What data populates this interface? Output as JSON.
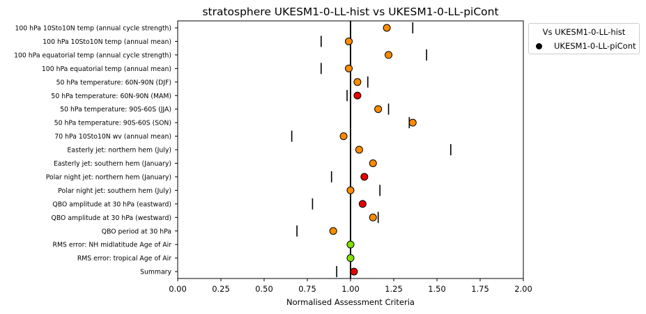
{
  "chart_data": {
    "type": "scatter",
    "title": "stratosphere UKESM1-0-LL-hist vs UKESM1-0-LL-piCont",
    "xlabel": "Normalised Assessment Criteria",
    "ylabel": "",
    "xlim": [
      0,
      2
    ],
    "xticks": [
      "0.00",
      "0.25",
      "0.50",
      "0.75",
      "1.00",
      "1.25",
      "1.50",
      "1.75",
      "2.00"
    ],
    "reference_line_x": 1.0,
    "grid": false,
    "legend": {
      "title": "Vs UKESM1-0-LL-hist",
      "placement": "outside-top-right",
      "entries": [
        {
          "label": "UKESM1-0-LL-piCont",
          "color": "#000000"
        }
      ]
    },
    "categories": [
      "100 hPa 10Sto10N temp (annual cycle strength)",
      "100 hPa 10Sto10N temp (annual mean)",
      "100 hPa equatorial temp (annual cycle strength)",
      "100 hPa equatorial temp (annual mean)",
      "50 hPa temperature: 60N-90N (DJF)",
      "50 hPa temperature: 60N-90N (MAM)",
      "50 hPa temperature: 90S-60S (JJA)",
      "50 hPa temperature: 90S-60S (SON)",
      "70 hPa 10Sto10N wv (annual mean)",
      "Easterly jet: northern hem (July)",
      "Easterly jet: southern hem (January)",
      "Polar night jet: northern hem (January)",
      "Polar night jet: southern hem (July)",
      "QBO amplitude at 30 hPa (eastward)",
      "QBO amplitude at 30 hPa (westward)",
      "QBO period at 30 hPa",
      "RMS error: NH midlatitude Age of Air",
      "RMS error: tropical Age of Air",
      "Summary"
    ],
    "series": [
      {
        "name": "UKESM1-0-LL-piCont",
        "values": [
          1.21,
          0.99,
          1.22,
          0.99,
          1.04,
          1.04,
          1.16,
          1.36,
          0.96,
          1.05,
          1.13,
          1.08,
          1.0,
          1.07,
          1.13,
          0.9,
          1.0,
          1.0,
          1.02
        ],
        "colors": [
          "#ff8c00",
          "#ff8c00",
          "#ff8c00",
          "#ff8c00",
          "#ff8c00",
          "#e60000",
          "#ff8c00",
          "#ff8c00",
          "#ff8c00",
          "#ff8c00",
          "#ff8c00",
          "#e60000",
          "#ff8c00",
          "#e60000",
          "#ff8c00",
          "#ff8c00",
          "#80e000",
          "#80e000",
          "#e60000"
        ]
      }
    ],
    "uncertainty_ticks": [
      1.36,
      0.83,
      1.44,
      0.83,
      1.1,
      0.98,
      1.22,
      1.34,
      0.66,
      1.58,
      null,
      0.89,
      1.17,
      0.78,
      1.16,
      0.69,
      null,
      null,
      0.92
    ]
  }
}
